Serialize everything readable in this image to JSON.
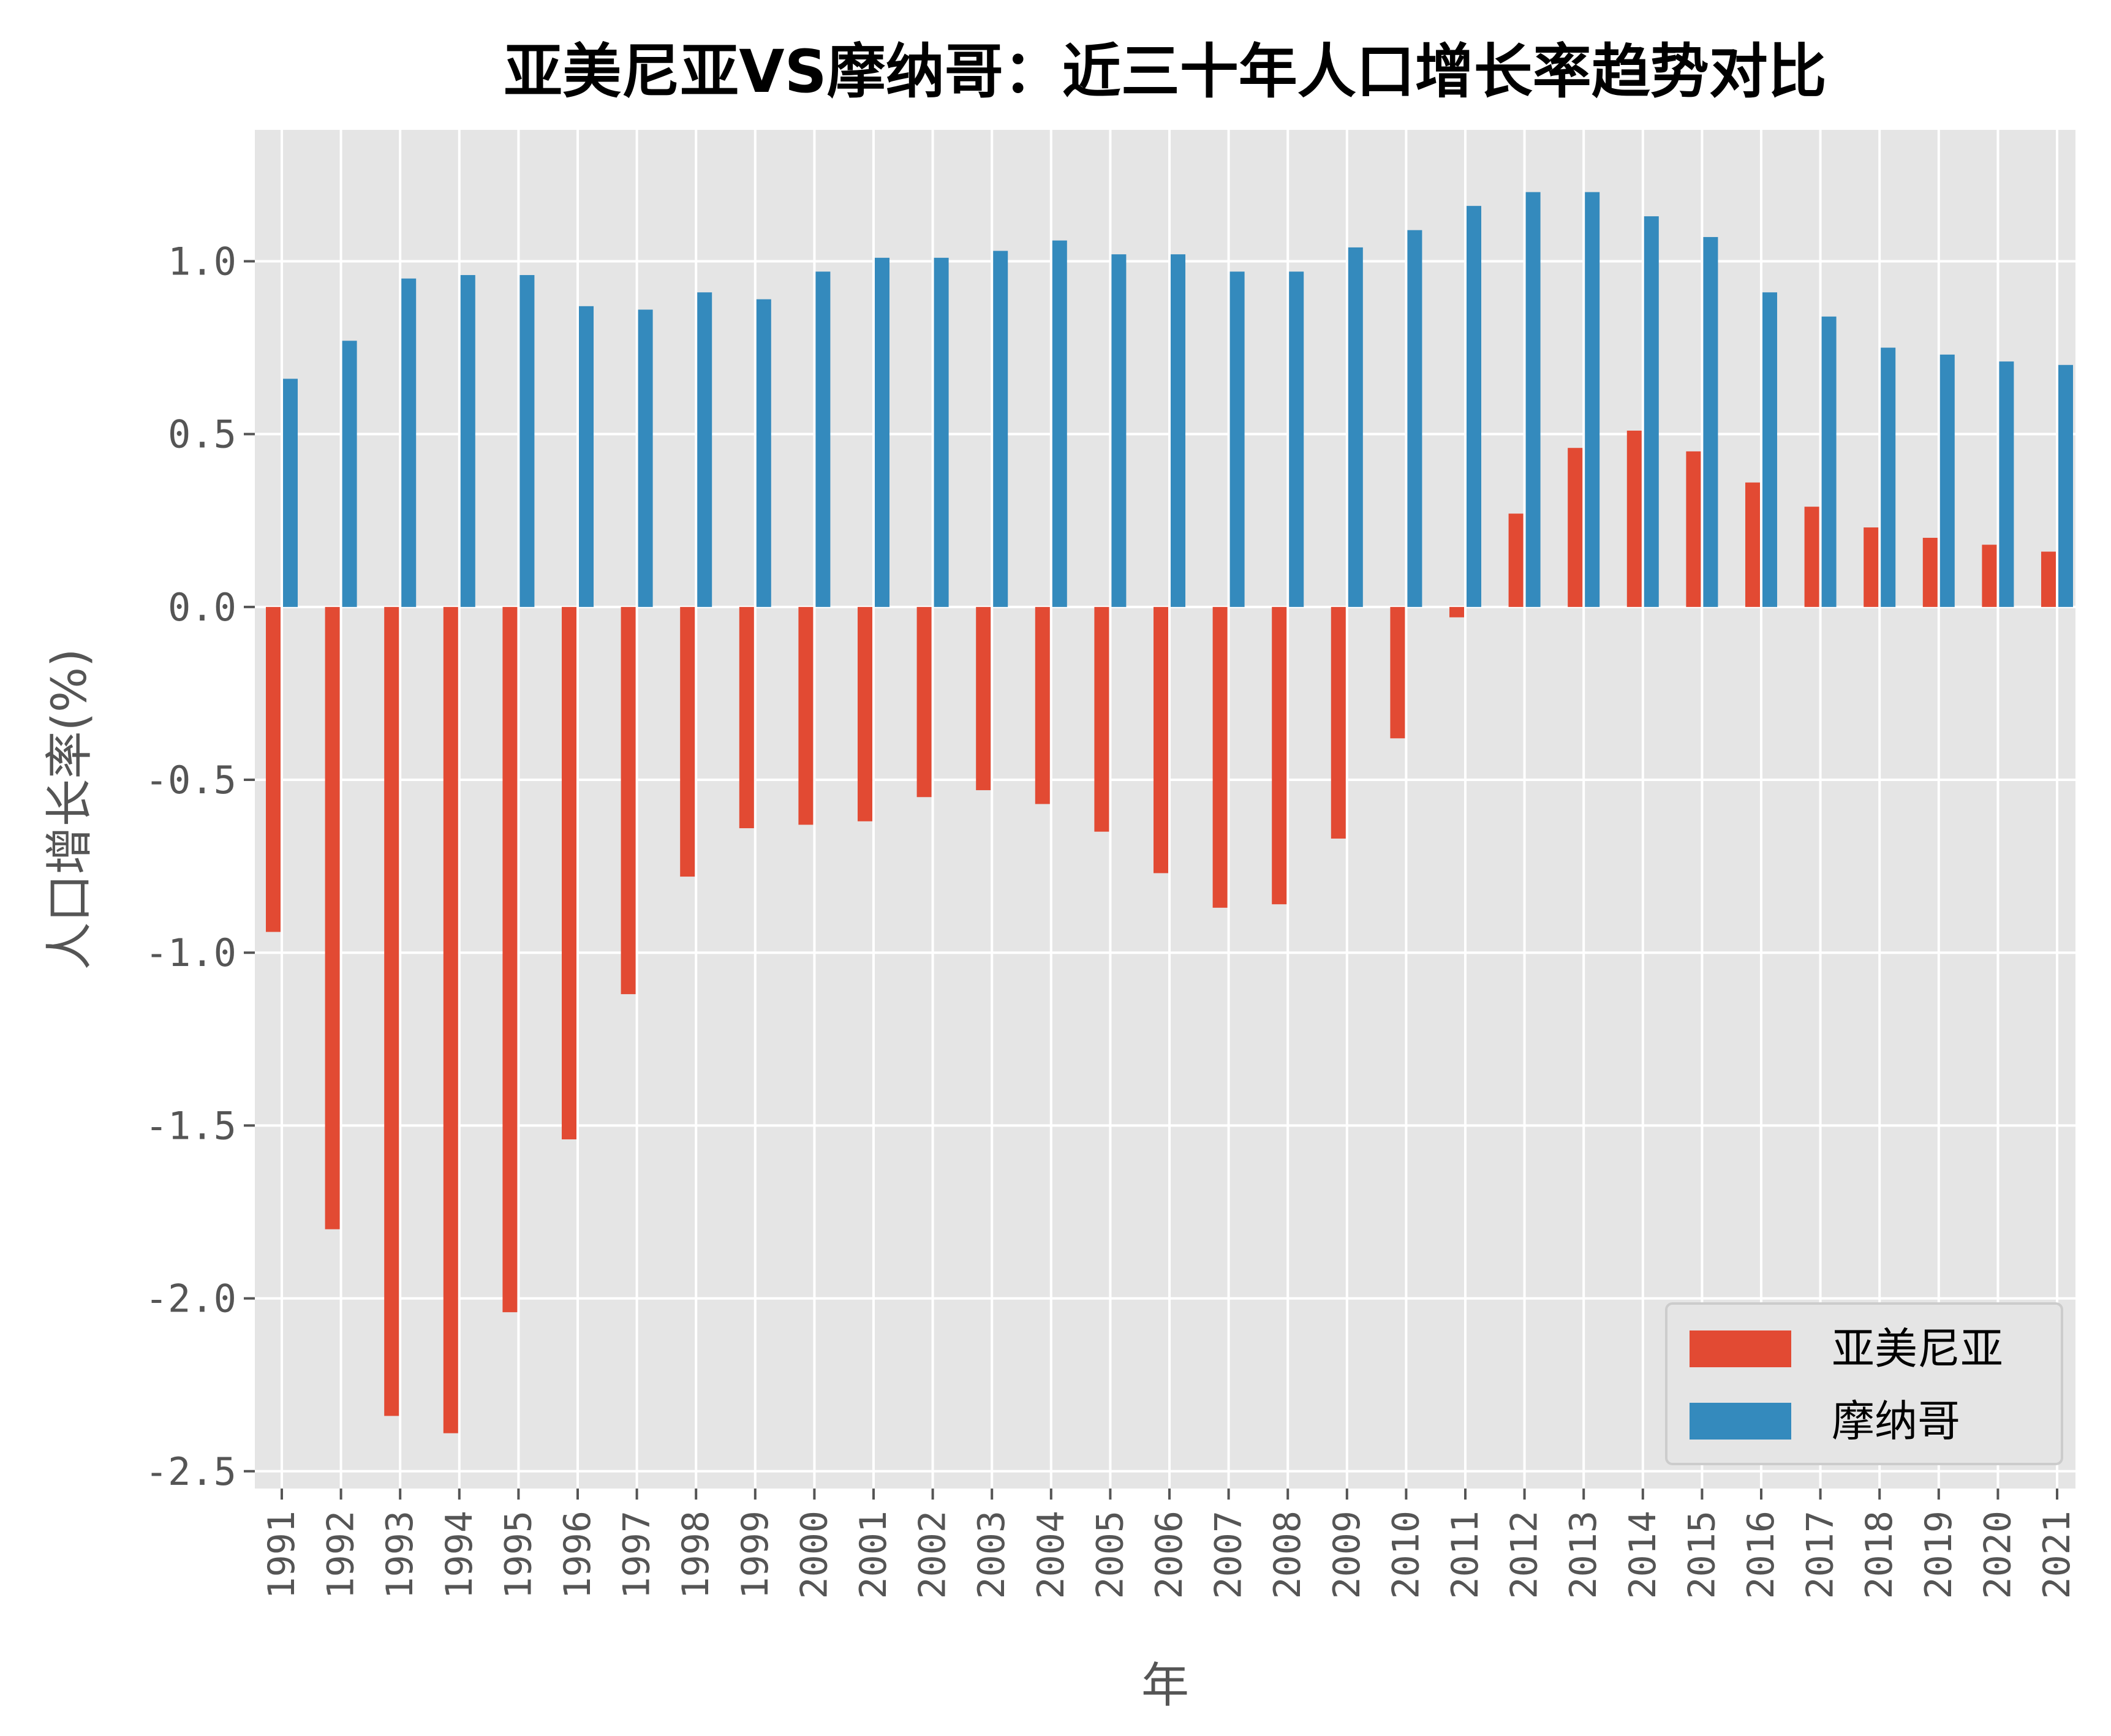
{
  "chart_data": {
    "type": "bar",
    "title": "亚美尼亚VS摩纳哥：近三十年人口增长率趋势对比",
    "xlabel": "年",
    "ylabel": "人口增长率(%)",
    "ylim": [
      -2.55,
      1.38
    ],
    "yticks": [
      "1.0",
      "0.5",
      "0.0",
      "-0.5",
      "-1.0",
      "-1.5",
      "-2.0",
      "-2.5"
    ],
    "ytick_values": [
      1.0,
      0.5,
      0.0,
      -0.5,
      -1.0,
      -1.5,
      -2.0,
      -2.5
    ],
    "grid": true,
    "legend_position": "lower-right",
    "categories": [
      "1991",
      "1992",
      "1993",
      "1994",
      "1995",
      "1996",
      "1997",
      "1998",
      "1999",
      "2000",
      "2001",
      "2002",
      "2003",
      "2004",
      "2005",
      "2006",
      "2007",
      "2008",
      "2009",
      "2010",
      "2011",
      "2012",
      "2013",
      "2014",
      "2015",
      "2016",
      "2017",
      "2018",
      "2019",
      "2020",
      "2021"
    ],
    "series": [
      {
        "name": "亚美尼亚",
        "color": "#E24A33",
        "values": [
          -0.94,
          -1.8,
          -2.34,
          -2.39,
          -2.04,
          -1.54,
          -1.12,
          -0.78,
          -0.64,
          -0.63,
          -0.62,
          -0.55,
          -0.53,
          -0.57,
          -0.65,
          -0.77,
          -0.87,
          -0.86,
          -0.67,
          -0.38,
          -0.03,
          0.27,
          0.46,
          0.51,
          0.45,
          0.36,
          0.29,
          0.23,
          0.2,
          0.18,
          0.16
        ]
      },
      {
        "name": "摩纳哥",
        "color": "#348ABD",
        "values": [
          0.66,
          0.77,
          0.95,
          0.96,
          0.96,
          0.87,
          0.86,
          0.91,
          0.89,
          0.97,
          1.01,
          1.01,
          1.03,
          1.06,
          1.02,
          1.02,
          0.97,
          0.97,
          1.04,
          1.09,
          1.16,
          1.2,
          1.2,
          1.13,
          1.07,
          0.91,
          0.84,
          0.75,
          0.73,
          0.71,
          0.7
        ]
      }
    ]
  }
}
